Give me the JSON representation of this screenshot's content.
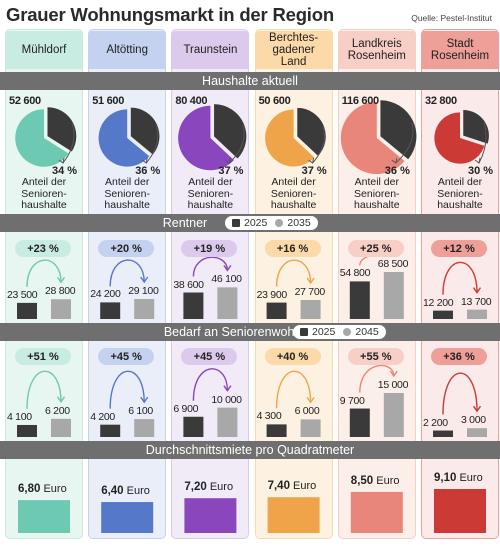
{
  "title": "Grauer Wohnungsmarkt in der Region",
  "source": "Quelle: Pestel-Institut",
  "sections": {
    "households": "Haushalte aktuell",
    "pensioners": "Rentner",
    "demand": "Bedarf an Seniorenwohnungen",
    "rent": "Durchschnittsmiete pro Quadratmeter"
  },
  "legends": {
    "pensioners": [
      "2025",
      "2035"
    ],
    "demand": [
      "2025",
      "2045"
    ]
  },
  "share_label": "Anteil der Senioren-haushalte",
  "regions": [
    {
      "name": "Mühldorf",
      "color": "#6ec9b2",
      "bg": "#e8f6f1",
      "head": "#c9ece2"
    },
    {
      "name": "Altötting",
      "color": "#5578c9",
      "bg": "#e9eef9",
      "head": "#c4d2f0"
    },
    {
      "name": "Traunstein",
      "color": "#8a47bd",
      "bg": "#f1eaf7",
      "head": "#dccaec"
    },
    {
      "name": "Berchtes-gadener Land",
      "color": "#f0a449",
      "bg": "#fdf1e2",
      "head": "#fbd9a9"
    },
    {
      "name": "Landkreis Rosenheim",
      "color": "#e9867a",
      "bg": "#fceee9",
      "head": "#f7cfc7"
    },
    {
      "name": "Stadt Rosenheim",
      "color": "#cc3a35",
      "bg": "#fbeaea",
      "head": "#ee9f98"
    }
  ],
  "chart_data": [
    {
      "type": "pie",
      "title": "Haushalte aktuell",
      "categories": [
        "Mühldorf",
        "Altötting",
        "Traunstein",
        "Berchtesgadener Land",
        "Landkreis Rosenheim",
        "Stadt Rosenheim"
      ],
      "households": [
        52600,
        51600,
        80400,
        50600,
        116600,
        32800
      ],
      "households_labels": [
        "52 600",
        "51 600",
        "80 400",
        "50 600",
        "116 600",
        "32 800"
      ],
      "senior_share_pct": [
        34,
        36,
        37,
        37,
        36,
        30
      ],
      "senior_share_labels": [
        "34 %",
        "36 %",
        "37 %",
        "37 %",
        "36 %",
        "30 %"
      ]
    },
    {
      "type": "bar",
      "title": "Rentner",
      "categories": [
        "Mühldorf",
        "Altötting",
        "Traunstein",
        "Berchtesgadener Land",
        "Landkreis Rosenheim",
        "Stadt Rosenheim"
      ],
      "series": [
        {
          "name": "2025",
          "values": [
            23500,
            24200,
            38600,
            23900,
            54800,
            12200
          ],
          "labels": [
            "23 500",
            "24 200",
            "38 600",
            "23 900",
            "54 800",
            "12 200"
          ]
        },
        {
          "name": "2035",
          "values": [
            28800,
            29100,
            46100,
            27700,
            68500,
            13700
          ],
          "labels": [
            "28 800",
            "29 100",
            "46 100",
            "27 700",
            "68 500",
            "13 700"
          ]
        }
      ],
      "change_labels": [
        "+23 %",
        "+20 %",
        "+19 %",
        "+16 %",
        "+25 %",
        "+12 %"
      ]
    },
    {
      "type": "bar",
      "title": "Bedarf an Seniorenwohnungen",
      "categories": [
        "Mühldorf",
        "Altötting",
        "Traunstein",
        "Berchtesgadener Land",
        "Landkreis Rosenheim",
        "Stadt Rosenheim"
      ],
      "series": [
        {
          "name": "2025",
          "values": [
            4100,
            4200,
            6900,
            4300,
            9700,
            2200
          ],
          "labels": [
            "4 100",
            "4 200",
            "6 900",
            "4 300",
            "9 700",
            "2 200"
          ]
        },
        {
          "name": "2045",
          "values": [
            6200,
            6100,
            10000,
            6000,
            15000,
            3000
          ],
          "labels": [
            "6 200",
            "6 100",
            "10 000",
            "6 000",
            "15 000",
            "3 000"
          ]
        }
      ],
      "change_labels": [
        "+51 %",
        "+45 %",
        "+45 %",
        "+40 %",
        "+55 %",
        "+36 %"
      ]
    },
    {
      "type": "bar",
      "title": "Durchschnittsmiete pro Quadratmeter",
      "categories": [
        "Mühldorf",
        "Altötting",
        "Traunstein",
        "Berchtesgadener Land",
        "Landkreis Rosenheim",
        "Stadt Rosenheim"
      ],
      "values": [
        6.8,
        6.4,
        7.2,
        7.4,
        8.5,
        9.1
      ],
      "value_labels": [
        "6,80",
        "6,40",
        "7,20",
        "7,40",
        "8,50",
        "9,10"
      ],
      "unit": "Euro"
    }
  ]
}
